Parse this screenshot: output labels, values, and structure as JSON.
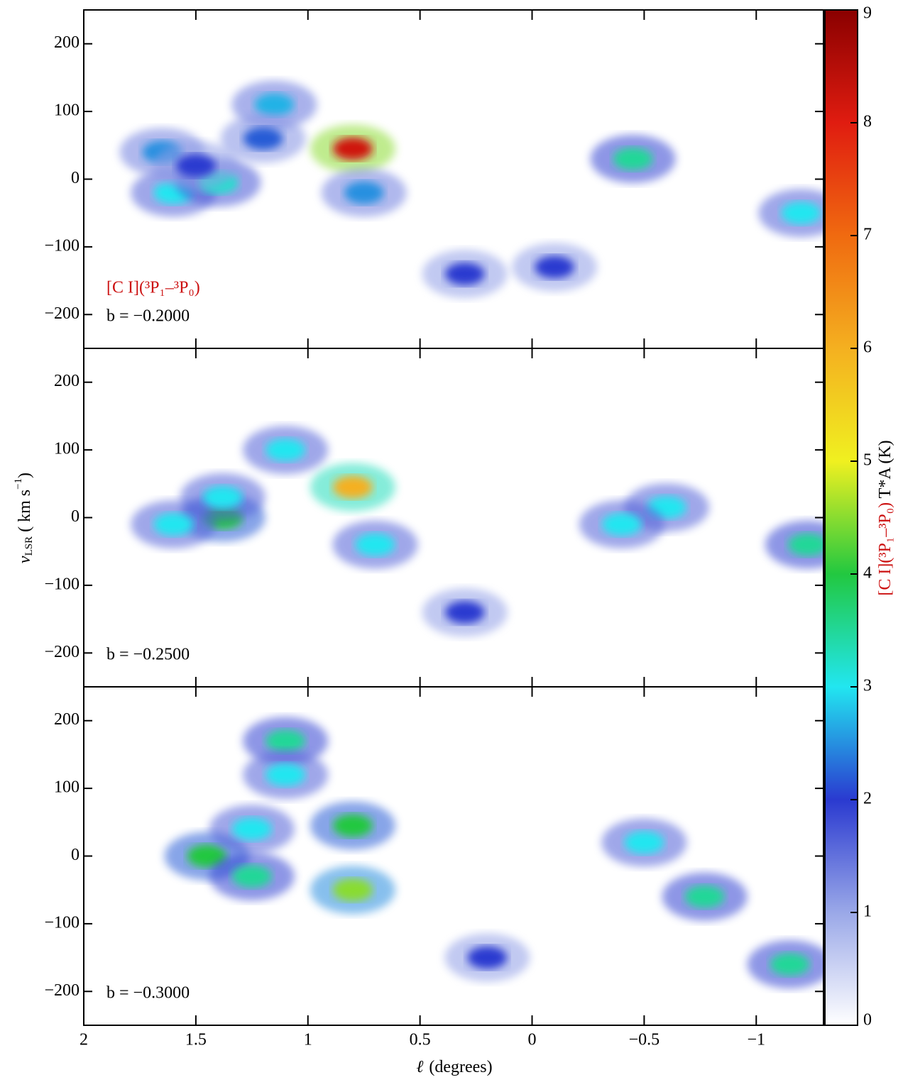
{
  "chart_data": {
    "type": "heatmap",
    "xlabel_symbol": "ℓ",
    "xlabel_unit": "(degrees)",
    "ylabel_parts": [
      "v",
      "LSR",
      " ( km s",
      "−1",
      ")"
    ],
    "xlim": [
      2,
      -1.3
    ],
    "xticks": [
      2,
      1.5,
      1,
      0.5,
      0,
      {
        "value": -0.5,
        "label": "−0.5"
      },
      {
        "value": -1,
        "label": "−1"
      }
    ],
    "ylim": [
      -250,
      250
    ],
    "yticks": [
      200,
      100,
      0,
      {
        "value": -100,
        "label": "−100"
      },
      {
        "value": -200,
        "label": "−200"
      }
    ],
    "colorbar": {
      "lim": [
        0,
        9
      ],
      "ticks": [
        0,
        1,
        2,
        3,
        4,
        5,
        6,
        7,
        8,
        9
      ],
      "label_species": "[C I](³P₁–³P₀)",
      "label_quantity": " T*A (K)",
      "colormap": [
        "#ffffff",
        "#9aa8e8",
        "#2a3ad0",
        "#22e6f0",
        "#22c840",
        "#f0f020",
        "#f4b020",
        "#f06a10",
        "#e01c10",
        "#8a0000"
      ]
    },
    "line_label": "[C I](³P₁–³P₀)",
    "panels": [
      {
        "label": "b = −0.2000",
        "features": [
          {
            "l": 0.8,
            "v": 45,
            "T": 8.2
          },
          {
            "l": 1.6,
            "v": -20,
            "T": 3
          },
          {
            "l": 1.4,
            "v": -5,
            "T": 3.2
          },
          {
            "l": 1.65,
            "v": 40,
            "T": 2.5
          },
          {
            "l": 1.15,
            "v": 110,
            "T": 2.7
          },
          {
            "l": -0.45,
            "v": 30,
            "T": 3.5
          },
          {
            "l": 0.75,
            "v": -20,
            "T": 2.5
          },
          {
            "l": -1.2,
            "v": -50,
            "T": 3
          },
          {
            "l": 0.3,
            "v": -140,
            "T": 2
          },
          {
            "l": -0.1,
            "v": -130,
            "T": 2
          },
          {
            "l": 1.5,
            "v": 20,
            "T": 2
          },
          {
            "l": 1.2,
            "v": 60,
            "T": 2.2
          }
        ]
      },
      {
        "label": "b = −0.2500",
        "features": [
          {
            "l": 0.8,
            "v": 45,
            "T": 6
          },
          {
            "l": 1.38,
            "v": 0,
            "T": 4
          },
          {
            "l": 1.38,
            "v": 30,
            "T": 3
          },
          {
            "l": 1.1,
            "v": 100,
            "T": 3
          },
          {
            "l": 1.6,
            "v": -10,
            "T": 3
          },
          {
            "l": -0.6,
            "v": 15,
            "T": 3
          },
          {
            "l": -1.23,
            "v": -40,
            "T": 3.5
          },
          {
            "l": 0.7,
            "v": -40,
            "T": 3
          },
          {
            "l": 0.3,
            "v": -140,
            "T": 2
          },
          {
            "l": -0.4,
            "v": -10,
            "T": 3
          }
        ]
      },
      {
        "label": "b = −0.3000",
        "features": [
          {
            "l": 0.8,
            "v": 45,
            "T": 4
          },
          {
            "l": 0.8,
            "v": -50,
            "T": 4.5
          },
          {
            "l": 1.1,
            "v": 170,
            "T": 3.5
          },
          {
            "l": 1.1,
            "v": 120,
            "T": 3
          },
          {
            "l": 1.45,
            "v": 0,
            "T": 4
          },
          {
            "l": 1.25,
            "v": -30,
            "T": 3.5
          },
          {
            "l": 1.25,
            "v": 40,
            "T": 3
          },
          {
            "l": -0.77,
            "v": -60,
            "T": 3.5
          },
          {
            "l": -1.15,
            "v": -160,
            "T": 3.5
          },
          {
            "l": 0.2,
            "v": -150,
            "T": 2
          },
          {
            "l": -0.5,
            "v": 20,
            "T": 3
          }
        ]
      }
    ]
  }
}
